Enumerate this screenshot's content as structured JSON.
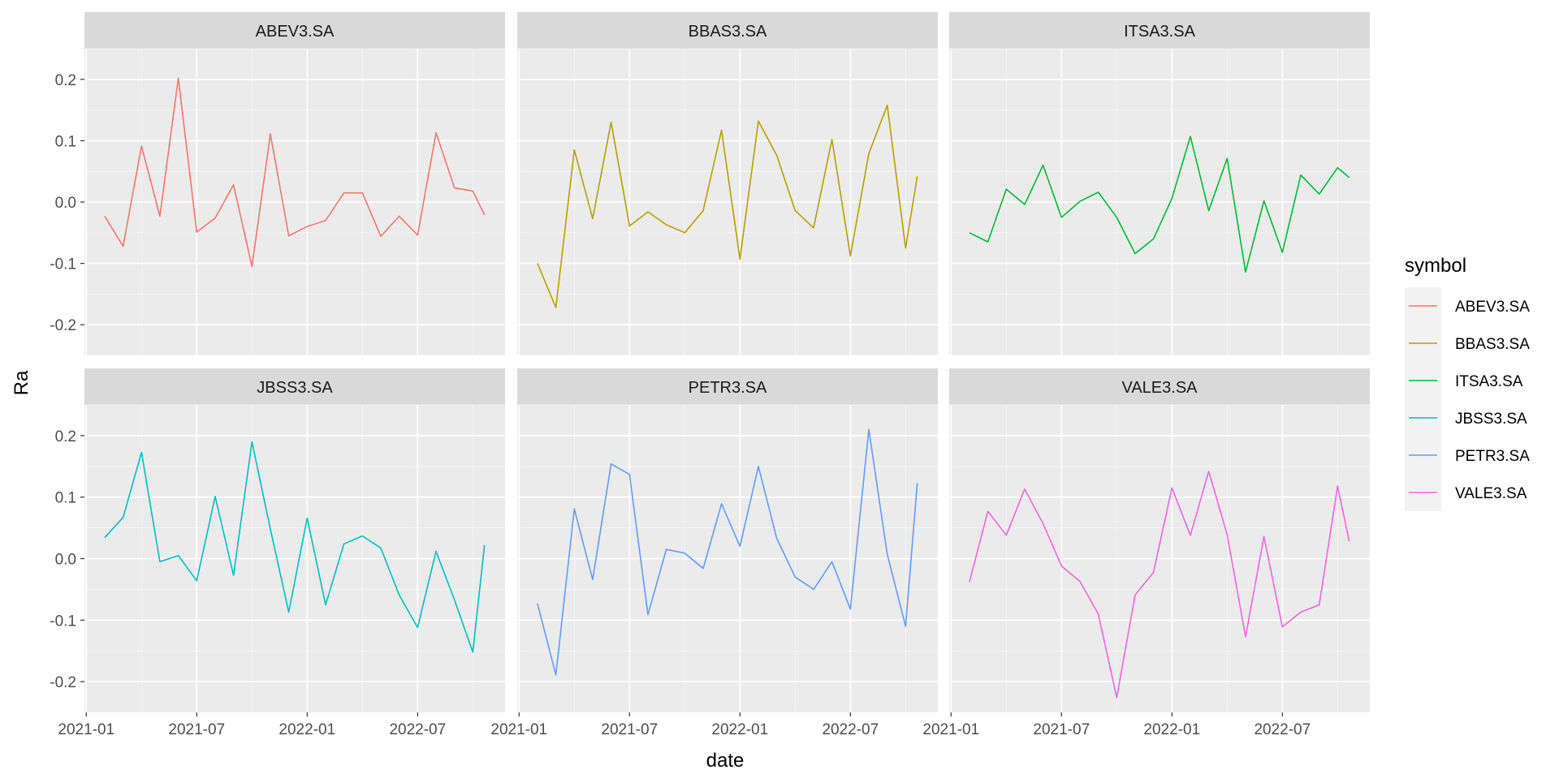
{
  "chart_data": {
    "type": "line",
    "xlabel": "date",
    "ylabel": "Ra",
    "x_ticks": [
      "2021-01",
      "2021-07",
      "2022-01",
      "2022-07"
    ],
    "y_ticks": [
      -0.2,
      -0.1,
      0.0,
      0.1,
      0.2
    ],
    "y_tick_labels": [
      "-0.2",
      "-0.1",
      "0.0",
      "0.1",
      "0.2"
    ],
    "ylim": [
      -0.25,
      0.25
    ],
    "xlim": [
      "2021-01",
      "2022-11"
    ],
    "legend": {
      "title": "symbol",
      "position": "right",
      "entries": [
        "ABEV3.SA",
        "BBAS3.SA",
        "ITSA3.SA",
        "JBSS3.SA",
        "PETR3.SA",
        "VALE3.SA"
      ]
    },
    "grid": true,
    "dates": [
      "2021-02",
      "2021-03",
      "2021-04",
      "2021-05",
      "2021-06",
      "2021-07",
      "2021-08",
      "2021-09",
      "2021-10",
      "2021-11",
      "2021-12",
      "2022-01",
      "2022-02",
      "2022-03",
      "2022-04",
      "2022-05",
      "2022-06",
      "2022-07",
      "2022-08",
      "2022-09",
      "2022-10",
      "2022-10-20"
    ],
    "series": [
      {
        "name": "ABEV3.SA",
        "color": "#F8766D",
        "values": [
          -0.023,
          -0.072,
          0.091,
          -0.023,
          0.202,
          -0.049,
          -0.026,
          0.028,
          -0.105,
          0.111,
          -0.055,
          -0.04,
          -0.03,
          0.015,
          0.015,
          -0.056,
          -0.023,
          -0.054,
          0.113,
          0.023,
          0.018,
          -0.021
        ]
      },
      {
        "name": "BBAS3.SA",
        "color": "#B79F00",
        "values": [
          -0.1,
          -0.172,
          0.085,
          -0.027,
          0.13,
          -0.039,
          -0.016,
          -0.037,
          -0.05,
          -0.014,
          0.117,
          -0.093,
          0.132,
          0.076,
          -0.014,
          -0.042,
          0.102,
          -0.088,
          0.079,
          0.158,
          -0.075,
          0.042
        ]
      },
      {
        "name": "ITSA3.SA",
        "color": "#00BA38",
        "values": [
          -0.05,
          -0.065,
          0.021,
          -0.004,
          0.06,
          -0.025,
          0.001,
          0.016,
          -0.025,
          -0.084,
          -0.06,
          0.006,
          0.107,
          -0.014,
          0.071,
          -0.114,
          0.002,
          -0.082,
          0.044,
          0.013,
          0.056,
          0.04
        ]
      },
      {
        "name": "JBSS3.SA",
        "color": "#00BFC4",
        "values": [
          0.034,
          0.067,
          0.173,
          -0.005,
          0.005,
          -0.036,
          0.101,
          -0.027,
          0.19,
          0.048,
          -0.087,
          0.066,
          -0.075,
          0.024,
          0.037,
          0.017,
          -0.059,
          -0.112,
          0.012,
          -0.067,
          -0.152,
          0.022
        ]
      },
      {
        "name": "PETR3.SA",
        "color": "#619CFF",
        "values": [
          -0.073,
          -0.189,
          0.081,
          -0.034,
          0.154,
          0.137,
          -0.091,
          0.015,
          0.009,
          -0.016,
          0.089,
          0.02,
          0.15,
          0.033,
          -0.03,
          -0.05,
          -0.005,
          -0.082,
          0.21,
          0.007,
          -0.11,
          0.123
        ]
      },
      {
        "name": "VALE3.SA",
        "color": "#F564E3",
        "values": [
          -0.038,
          0.077,
          0.038,
          0.113,
          0.057,
          -0.012,
          -0.037,
          -0.09,
          -0.226,
          -0.059,
          -0.022,
          0.115,
          0.038,
          0.142,
          0.039,
          -0.127,
          0.036,
          -0.111,
          -0.087,
          -0.075,
          0.118,
          0.028
        ]
      }
    ]
  },
  "colors": {
    "panel_bg": "#EBEBEB",
    "strip_bg": "#D9D9D9",
    "grid_major": "#FFFFFF",
    "legend_bg": "#F2F2F2"
  }
}
